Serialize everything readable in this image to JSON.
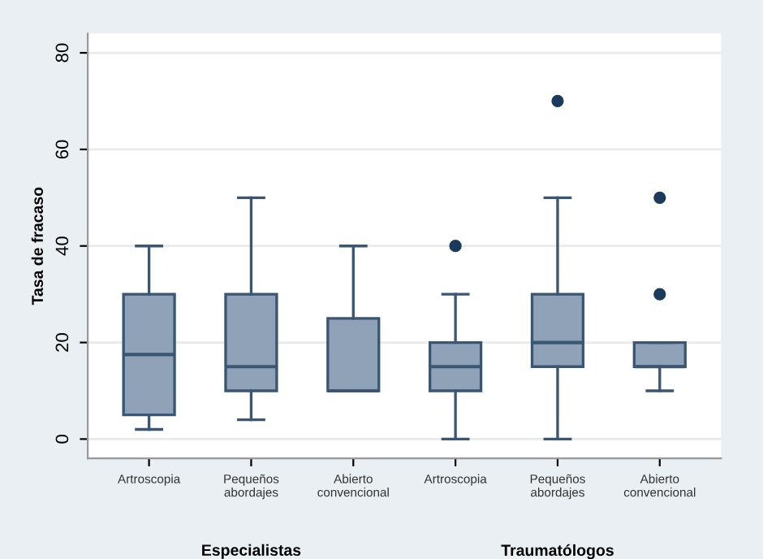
{
  "chart_data": {
    "type": "box",
    "ylabel": "Tasa de fracaso",
    "categories": [
      "Artroscopia",
      "Pequeños\nabordajes",
      "Abierto\nconvencional",
      "Artroscopia",
      "Pequeños\nabordajes",
      "Abierto\nconvencional"
    ],
    "color": "#8fa2b7",
    "boxes": [
      {
        "low": 2,
        "q1": 5,
        "median": 17.5,
        "q3": 30,
        "high": 40
      },
      {
        "low": 4,
        "q1": 10,
        "median": 15,
        "q3": 30,
        "high": 50
      },
      {
        "low": 10,
        "q1": 10,
        "median": 10,
        "q3": 25,
        "high": 40
      },
      {
        "low": 0,
        "q1": 10,
        "median": 15,
        "q3": 20,
        "high": 30,
        "outliers": [
          40
        ]
      },
      {
        "low": 0,
        "q1": 15,
        "median": 20,
        "q3": 30,
        "high": 50,
        "outliers": [
          70
        ]
      },
      {
        "low": 10,
        "q1": 15,
        "median": 15,
        "q3": 20,
        "high": 20,
        "outliers": [
          30,
          50
        ]
      }
    ],
    "ylim": [
      -4,
      84
    ],
    "yticks": [
      0,
      20,
      40,
      60,
      80
    ],
    "grid": "y",
    "annotations": [
      "Especialistas",
      "Traumatólogos"
    ]
  }
}
